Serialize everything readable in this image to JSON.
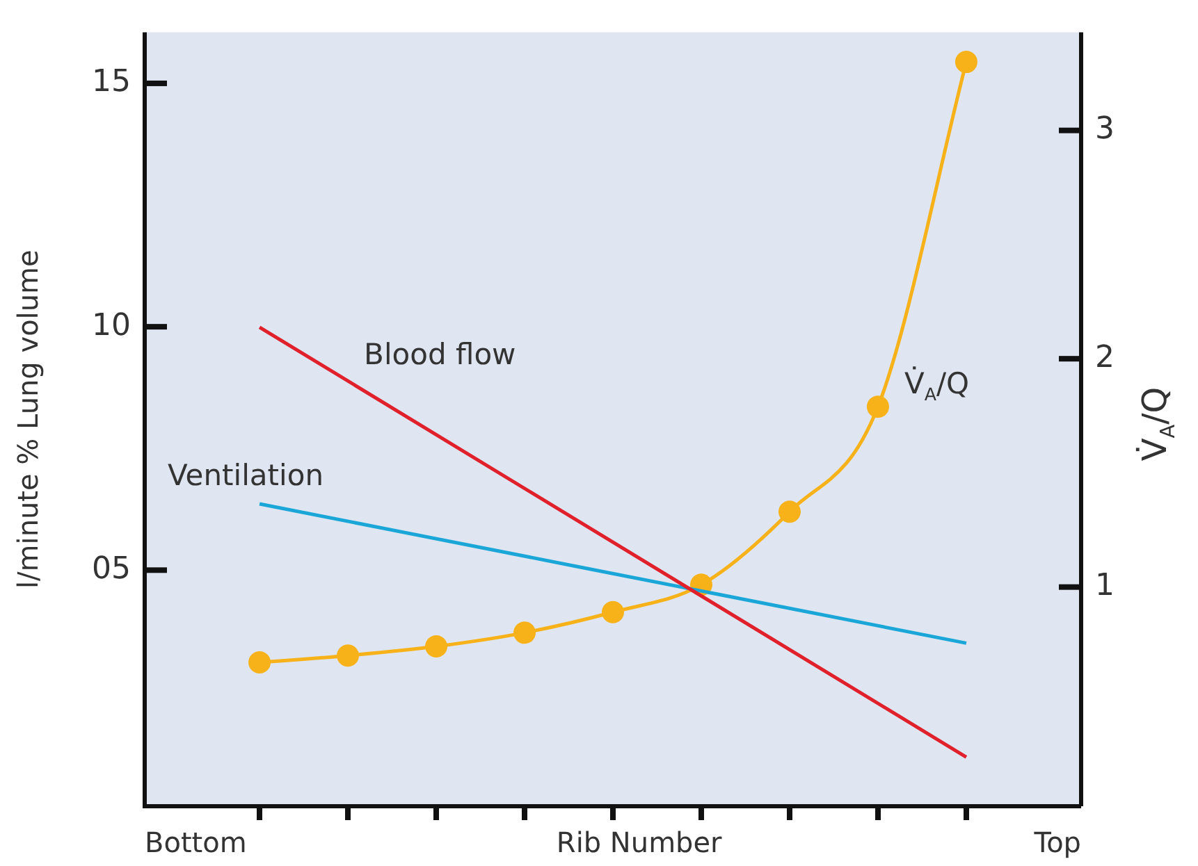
{
  "chart_data": {
    "type": "line",
    "xlabel": "Rib Number",
    "ylabel": "l/minute % Lung volume",
    "y2label": "V̇$_{A}$/Q",
    "categories": [
      null,
      null,
      null,
      null,
      null,
      null,
      null,
      null,
      null
    ],
    "ylim": [
      0.15,
      16.05
    ],
    "yticks": [
      {
        "value": 5,
        "label": "05"
      },
      10,
      15
    ],
    "y2lim": [
      0.04,
      3.43
    ],
    "y2ticks": [
      1,
      2,
      3
    ],
    "annotations": [
      "Bottom",
      "Top"
    ],
    "grid": false,
    "legend": false,
    "series": [
      {
        "name": "Blood flow",
        "color": "#e0202a",
        "values": [
          9.99,
          null,
          null,
          null,
          null,
          null,
          null,
          null,
          1.16
        ],
        "marker": "none"
      },
      {
        "name": "Ventilation",
        "color": "#1aa7d8",
        "values": [
          6.36,
          null,
          null,
          null,
          null,
          null,
          null,
          null,
          3.5
        ],
        "marker": "none"
      },
      {
        "name": "V̇$_{A}$/Q",
        "color": "#f7b21a",
        "axis": "y2",
        "values": [
          0.67,
          0.7,
          0.74,
          0.8,
          0.89,
          1.01,
          1.33,
          1.79,
          3.3
        ],
        "marker": "circle"
      }
    ]
  }
}
